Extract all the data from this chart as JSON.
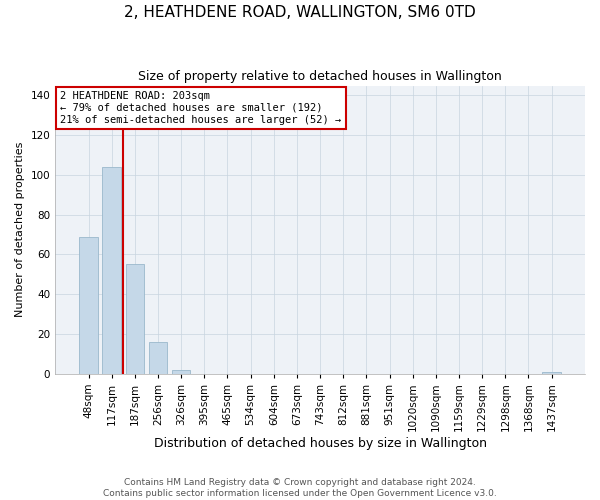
{
  "title": "2, HEATHDENE ROAD, WALLINGTON, SM6 0TD",
  "subtitle": "Size of property relative to detached houses in Wallington",
  "xlabel": "Distribution of detached houses by size in Wallington",
  "ylabel": "Number of detached properties",
  "categories": [
    "48sqm",
    "117sqm",
    "187sqm",
    "256sqm",
    "326sqm",
    "395sqm",
    "465sqm",
    "534sqm",
    "604sqm",
    "673sqm",
    "743sqm",
    "812sqm",
    "881sqm",
    "951sqm",
    "1020sqm",
    "1090sqm",
    "1159sqm",
    "1229sqm",
    "1298sqm",
    "1368sqm",
    "1437sqm"
  ],
  "values": [
    69,
    104,
    55,
    16,
    2,
    0,
    0,
    0,
    0,
    0,
    0,
    0,
    0,
    0,
    0,
    0,
    0,
    0,
    0,
    0,
    1
  ],
  "bar_color": "#c5d8e8",
  "bar_edge_color": "#9ab8cc",
  "property_line_color": "#cc0000",
  "annotation_text": "2 HEATHDENE ROAD: 203sqm\n← 79% of detached houses are smaller (192)\n21% of semi-detached houses are larger (52) →",
  "annotation_box_color": "#cc0000",
  "ylim": [
    0,
    145
  ],
  "yticks": [
    0,
    20,
    40,
    60,
    80,
    100,
    120,
    140
  ],
  "footer_line1": "Contains HM Land Registry data © Crown copyright and database right 2024.",
  "footer_line2": "Contains public sector information licensed under the Open Government Licence v3.0.",
  "bg_color": "#eef2f7",
  "grid_color": "#c8d4e0",
  "title_fontsize": 11,
  "subtitle_fontsize": 9,
  "xlabel_fontsize": 9,
  "ylabel_fontsize": 8,
  "tick_fontsize": 7.5,
  "annotation_fontsize": 7.5,
  "footer_fontsize": 6.5
}
